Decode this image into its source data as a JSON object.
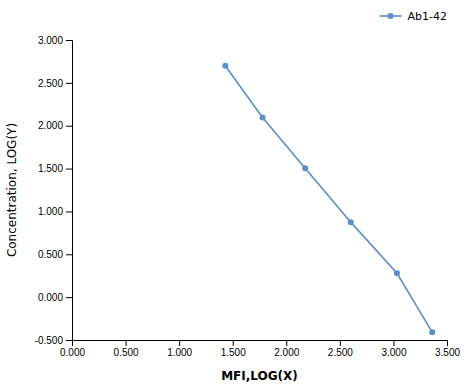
{
  "chart_data": {
    "type": "line",
    "x": [
      1.431,
      1.778,
      2.176,
      2.602,
      3.033,
      3.362
    ],
    "series": [
      {
        "name": "Ab1-42",
        "color": "#5b8fc9",
        "marker": "circle",
        "line_style": "solid",
        "values": [
          2.699,
          2.097,
          1.505,
          0.875,
          0.279,
          -0.409
        ]
      }
    ],
    "x_label": "MFI,LOG(X)",
    "y_label": "Concentration, LOG(Y)",
    "xlim": [
      0.0,
      3.5
    ],
    "ylim": [
      -0.5,
      3.0
    ],
    "xticks": [
      {
        "value": 0.0,
        "label": "0.000"
      },
      {
        "value": 0.5,
        "label": "0.500"
      },
      {
        "value": 1.0,
        "label": "1.000"
      },
      {
        "value": 1.5,
        "label": "1.500"
      },
      {
        "value": 2.0,
        "label": "2.000"
      },
      {
        "value": 2.5,
        "label": "2.500"
      },
      {
        "value": 3.0,
        "label": "3.000"
      },
      {
        "value": 3.5,
        "label": "3.500"
      }
    ],
    "yticks": [
      {
        "value": -0.5,
        "label": "-0.500"
      },
      {
        "value": 0.0,
        "label": "0.000"
      },
      {
        "value": 0.5,
        "label": "0.500"
      },
      {
        "value": 1.0,
        "label": "1.000"
      },
      {
        "value": 1.5,
        "label": "1.500"
      },
      {
        "value": 2.0,
        "label": "2.000"
      },
      {
        "value": 2.5,
        "label": "2.500"
      },
      {
        "value": 3.0,
        "label": "3.000"
      }
    ],
    "grid": false,
    "legend": "upper right"
  }
}
